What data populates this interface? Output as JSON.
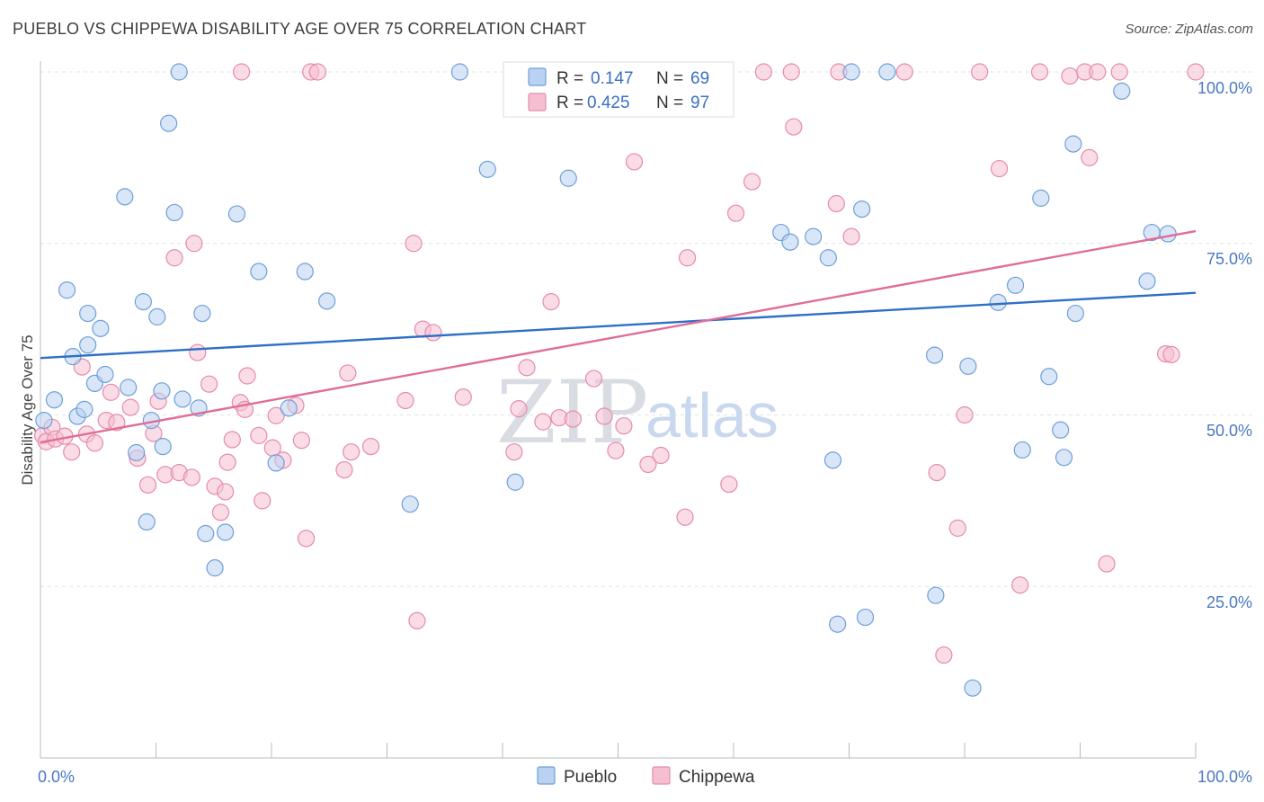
{
  "title": "PUEBLO VS CHIPPEWA DISABILITY AGE OVER 75 CORRELATION CHART",
  "source": "Source: ZipAtlas.com",
  "watermark": {
    "zip": "ZIP",
    "atlas": "atlas"
  },
  "colors": {
    "pueblo_fill": "#b9d2f2",
    "pueblo_stroke": "#6f9fd8",
    "pueblo_line": "#2f6fc7",
    "chippewa_fill": "#f5bfd1",
    "chippewa_stroke": "#e68aab",
    "chippewa_line": "#e06d98",
    "grid": "#dfe3e8",
    "tick_text": "#4a78c2"
  },
  "legend": {
    "rows": [
      {
        "r_label": "R =",
        "r_value": "0.147",
        "n_label": "N =",
        "n_value": "69"
      },
      {
        "r_label": "R =",
        "r_value": "0.425",
        "n_label": "N =",
        "n_value": "97"
      }
    ]
  },
  "bottom_legend": [
    "Pueblo",
    "Chippewa"
  ],
  "chart_data": {
    "type": "scatter",
    "ylabel": "Disability Age Over 75",
    "xlim": [
      0,
      100
    ],
    "ylim": [
      0,
      100
    ],
    "x_tick_labels": [
      "0.0%",
      "100.0%"
    ],
    "y_tick_labels": [
      "25.0%",
      "50.0%",
      "75.0%",
      "100.0%"
    ],
    "y_ticks": [
      25,
      50,
      75,
      100
    ],
    "grid": "horizontal dashed",
    "legend_position": "top-center",
    "series": [
      {
        "name": "Pueblo",
        "R": 0.147,
        "N": 69,
        "trend": {
          "x": [
            0,
            100
          ],
          "y": [
            58.3,
            67.8
          ]
        },
        "points": [
          [
            0.3,
            49.2
          ],
          [
            1.2,
            52.2
          ],
          [
            2.3,
            68.2
          ],
          [
            3.2,
            49.8
          ],
          [
            3.8,
            50.8
          ],
          [
            4.1,
            64.8
          ],
          [
            4.7,
            54.6
          ],
          [
            5.2,
            62.6
          ],
          [
            5.6,
            55.9
          ],
          [
            7.3,
            81.8
          ],
          [
            7.6,
            54.0
          ],
          [
            8.3,
            44.5
          ],
          [
            8.9,
            66.5
          ],
          [
            9.2,
            34.4
          ],
          [
            9.6,
            49.2
          ],
          [
            10.1,
            64.3
          ],
          [
            10.6,
            45.4
          ],
          [
            11.1,
            92.5
          ],
          [
            11.6,
            79.5
          ],
          [
            12.0,
            100
          ],
          [
            12.3,
            52.3
          ],
          [
            13.7,
            51.0
          ],
          [
            14.0,
            64.8
          ],
          [
            14.3,
            32.7
          ],
          [
            15.1,
            27.7
          ],
          [
            16.0,
            32.9
          ],
          [
            17.0,
            79.3
          ],
          [
            18.9,
            70.9
          ],
          [
            20.4,
            43.0
          ],
          [
            21.5,
            51.0
          ],
          [
            22.9,
            70.9
          ],
          [
            24.8,
            66.6
          ],
          [
            32.0,
            37.0
          ],
          [
            36.3,
            100
          ],
          [
            38.7,
            85.8
          ],
          [
            41.1,
            40.2
          ],
          [
            45.7,
            84.5
          ],
          [
            55.8,
            100
          ],
          [
            57.4,
            97.0
          ],
          [
            64.1,
            76.6
          ],
          [
            64.9,
            75.2
          ],
          [
            66.9,
            76.0
          ],
          [
            68.2,
            72.9
          ],
          [
            68.6,
            43.4
          ],
          [
            69.0,
            19.5
          ],
          [
            70.2,
            100
          ],
          [
            71.1,
            80.0
          ],
          [
            71.4,
            20.5
          ],
          [
            73.3,
            100
          ],
          [
            77.4,
            58.7
          ],
          [
            77.5,
            23.7
          ],
          [
            80.3,
            57.1
          ],
          [
            80.7,
            10.2
          ],
          [
            82.9,
            66.4
          ],
          [
            84.4,
            68.9
          ],
          [
            85.0,
            44.9
          ],
          [
            86.6,
            81.6
          ],
          [
            87.3,
            55.6
          ],
          [
            88.3,
            47.8
          ],
          [
            88.6,
            43.8
          ],
          [
            89.4,
            89.5
          ],
          [
            89.6,
            64.8
          ],
          [
            93.6,
            97.2
          ],
          [
            95.8,
            69.5
          ],
          [
            96.2,
            76.6
          ],
          [
            97.6,
            76.4
          ],
          [
            4.1,
            60.2
          ],
          [
            10.5,
            53.5
          ],
          [
            2.8,
            58.5
          ]
        ]
      },
      {
        "name": "Chippewa",
        "R": 0.425,
        "N": 97,
        "trend": {
          "x": [
            0,
            100
          ],
          "y": [
            46.0,
            76.8
          ]
        },
        "points": [
          [
            0.2,
            47.0
          ],
          [
            0.5,
            46.1
          ],
          [
            1.0,
            48.2
          ],
          [
            1.3,
            46.5
          ],
          [
            2.1,
            46.9
          ],
          [
            2.7,
            44.6
          ],
          [
            3.6,
            57.0
          ],
          [
            4.0,
            47.2
          ],
          [
            4.7,
            45.9
          ],
          [
            5.7,
            49.2
          ],
          [
            6.1,
            53.3
          ],
          [
            6.6,
            48.9
          ],
          [
            7.8,
            51.1
          ],
          [
            8.4,
            43.7
          ],
          [
            9.3,
            39.8
          ],
          [
            9.8,
            47.3
          ],
          [
            10.2,
            52.0
          ],
          [
            10.8,
            41.3
          ],
          [
            11.6,
            72.9
          ],
          [
            12.0,
            41.6
          ],
          [
            13.1,
            40.9
          ],
          [
            13.3,
            75.0
          ],
          [
            13.6,
            59.1
          ],
          [
            14.6,
            54.5
          ],
          [
            15.1,
            39.6
          ],
          [
            15.6,
            35.8
          ],
          [
            16.0,
            38.8
          ],
          [
            16.2,
            43.1
          ],
          [
            16.6,
            46.4
          ],
          [
            17.3,
            51.8
          ],
          [
            17.7,
            50.8
          ],
          [
            17.9,
            55.7
          ],
          [
            18.9,
            47.0
          ],
          [
            19.2,
            37.5
          ],
          [
            20.1,
            45.2
          ],
          [
            20.4,
            49.9
          ],
          [
            21.0,
            43.4
          ],
          [
            22.1,
            51.4
          ],
          [
            22.6,
            46.3
          ],
          [
            23.0,
            32.0
          ],
          [
            23.4,
            100
          ],
          [
            24.0,
            100
          ],
          [
            26.3,
            42.0
          ],
          [
            26.6,
            56.1
          ],
          [
            26.9,
            44.6
          ],
          [
            28.6,
            45.4
          ],
          [
            31.6,
            52.1
          ],
          [
            32.3,
            75.0
          ],
          [
            32.6,
            20.0
          ],
          [
            33.1,
            62.5
          ],
          [
            34.0,
            62.0
          ],
          [
            36.6,
            52.6
          ],
          [
            41.0,
            44.6
          ],
          [
            41.4,
            50.9
          ],
          [
            42.1,
            56.9
          ],
          [
            43.5,
            49.0
          ],
          [
            44.2,
            66.5
          ],
          [
            44.9,
            49.6
          ],
          [
            46.1,
            49.4
          ],
          [
            47.9,
            55.3
          ],
          [
            48.8,
            49.8
          ],
          [
            49.8,
            44.8
          ],
          [
            50.5,
            48.4
          ],
          [
            51.4,
            86.9
          ],
          [
            52.6,
            42.8
          ],
          [
            53.7,
            44.1
          ],
          [
            55.8,
            35.1
          ],
          [
            56.0,
            72.9
          ],
          [
            57.0,
            100
          ],
          [
            59.6,
            39.9
          ],
          [
            60.2,
            79.4
          ],
          [
            61.6,
            84.0
          ],
          [
            62.6,
            100
          ],
          [
            65.0,
            100
          ],
          [
            65.2,
            92.0
          ],
          [
            68.9,
            80.8
          ],
          [
            69.1,
            100
          ],
          [
            70.2,
            76.0
          ],
          [
            74.8,
            100
          ],
          [
            77.6,
            41.6
          ],
          [
            78.2,
            15.0
          ],
          [
            79.4,
            33.5
          ],
          [
            80.0,
            50.0
          ],
          [
            81.3,
            100
          ],
          [
            83.0,
            85.9
          ],
          [
            84.8,
            25.2
          ],
          [
            86.5,
            100
          ],
          [
            89.1,
            99.4
          ],
          [
            90.4,
            100
          ],
          [
            90.8,
            87.5
          ],
          [
            91.5,
            100
          ],
          [
            92.3,
            28.3
          ],
          [
            93.4,
            100
          ],
          [
            97.4,
            58.9
          ],
          [
            97.9,
            58.8
          ],
          [
            100,
            100
          ],
          [
            17.4,
            100
          ]
        ]
      }
    ]
  }
}
